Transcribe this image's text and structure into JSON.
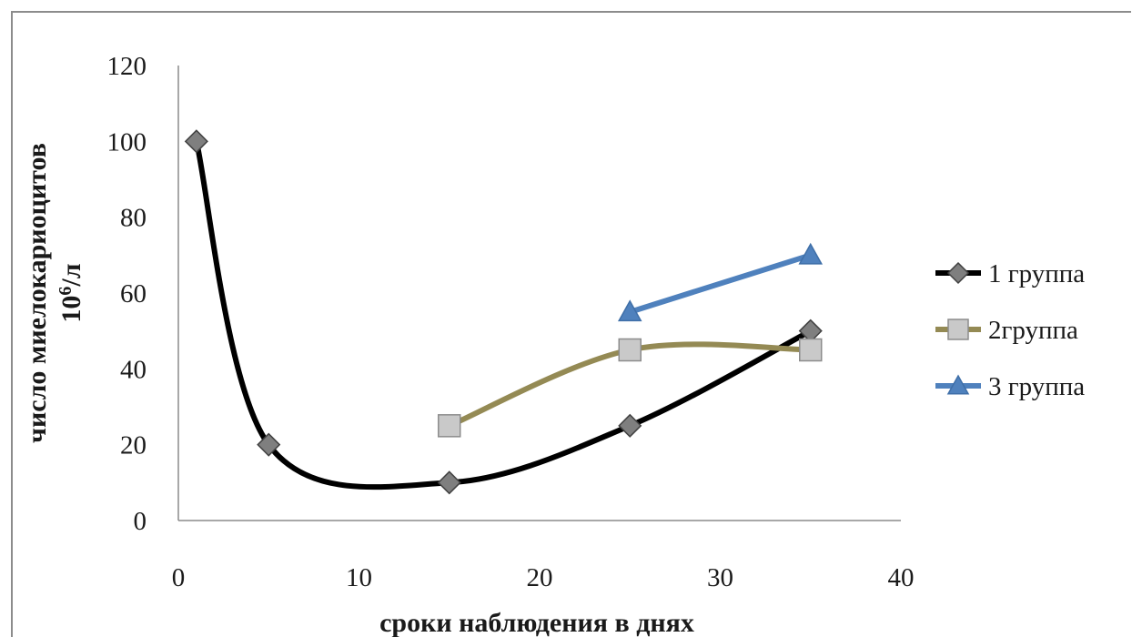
{
  "chart_data": {
    "type": "line",
    "title": "",
    "xlabel": "сроки наблюдения в днях",
    "ylabel_line1": "число миелокариоцитов",
    "ylabel_line2_base": "10",
    "ylabel_line2_sup": "6",
    "ylabel_line2_unit": "/л",
    "xlim": [
      0,
      40
    ],
    "ylim": [
      0,
      120
    ],
    "x_ticks": [
      0,
      10,
      20,
      30,
      40
    ],
    "y_ticks": [
      0,
      20,
      40,
      60,
      80,
      100,
      120
    ],
    "grid": false,
    "legend_position": "right",
    "series": [
      {
        "name": "1 группа",
        "color": "#000000",
        "marker": "diamond",
        "marker_fill": "#7f7f7f",
        "smooth": true,
        "points": [
          [
            1,
            100
          ],
          [
            5,
            20
          ],
          [
            15,
            10
          ],
          [
            25,
            25
          ],
          [
            35,
            50
          ]
        ]
      },
      {
        "name": "2группа",
        "color": "#948a54",
        "marker": "square",
        "marker_fill": "#c9c9c9",
        "smooth": true,
        "points": [
          [
            15,
            25
          ],
          [
            25,
            45
          ],
          [
            35,
            45
          ]
        ]
      },
      {
        "name": "3 группа",
        "color": "#4f81bd",
        "marker": "triangle",
        "marker_fill": "#4f81bd",
        "smooth": false,
        "points": [
          [
            25,
            55
          ],
          [
            35,
            70
          ]
        ]
      }
    ]
  }
}
